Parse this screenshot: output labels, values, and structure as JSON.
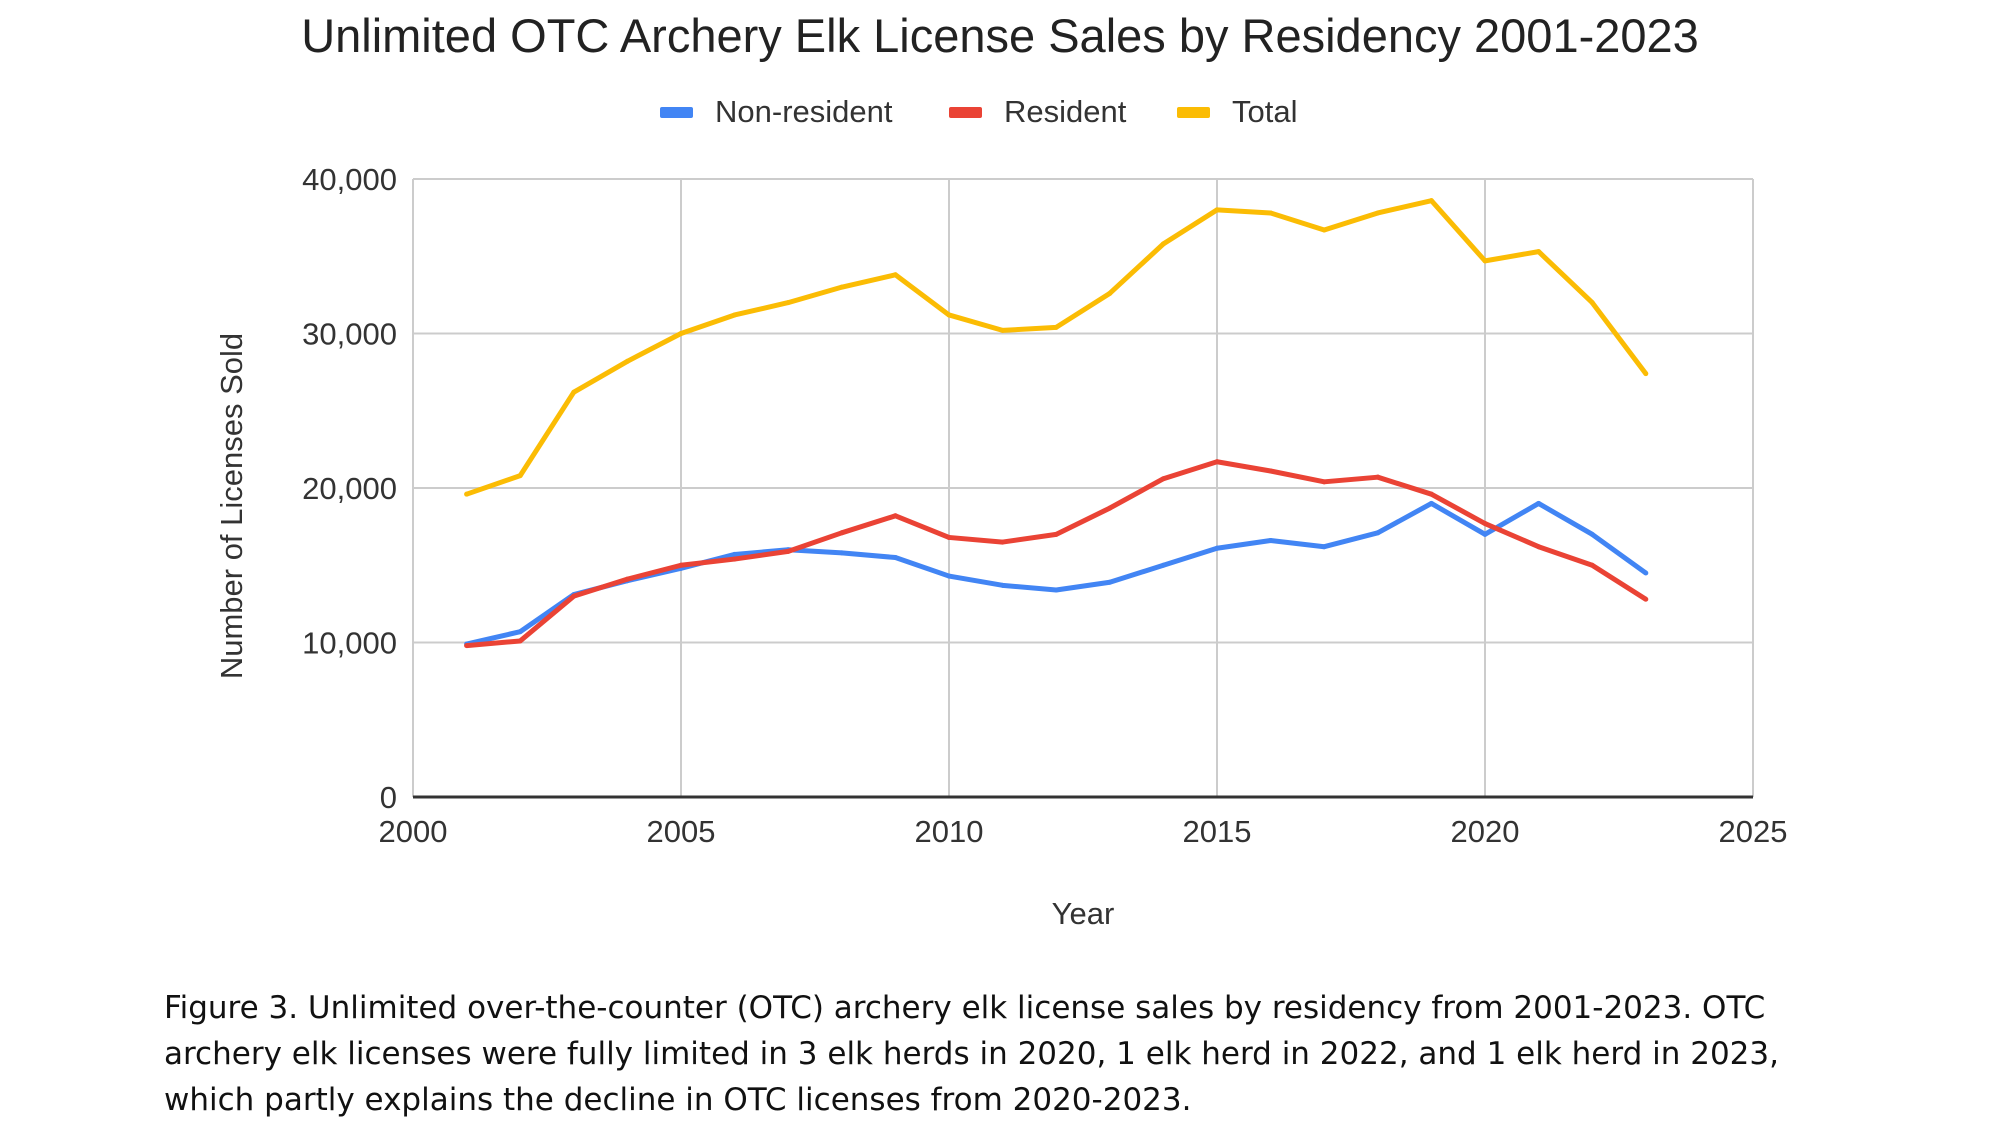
{
  "chart_data": {
    "type": "line",
    "title": "Unlimited OTC Archery Elk License Sales by Residency 2001-2023",
    "xlabel": "Year",
    "ylabel": "Number of Licenses Sold",
    "xlim": [
      2000,
      2025
    ],
    "ylim": [
      0,
      40000
    ],
    "xticks": [
      "2000",
      "2005",
      "2010",
      "2015",
      "2020",
      "2025"
    ],
    "yticks": [
      "0",
      "10,000",
      "20,000",
      "30,000",
      "40,000"
    ],
    "grid": true,
    "legend": "top",
    "x": [
      2001,
      2002,
      2003,
      2004,
      2005,
      2006,
      2007,
      2008,
      2009,
      2010,
      2011,
      2012,
      2013,
      2014,
      2015,
      2016,
      2017,
      2018,
      2019,
      2020,
      2021,
      2022,
      2023
    ],
    "series": [
      {
        "name": "Non-resident",
        "color": "#4285F4",
        "values": [
          9900,
          10700,
          13100,
          14000,
          14800,
          15700,
          16000,
          15800,
          15500,
          14300,
          13700,
          13400,
          13900,
          15000,
          16100,
          16600,
          16200,
          17100,
          19000,
          17000,
          19000,
          17000,
          14500
        ]
      },
      {
        "name": "Resident",
        "color": "#EA4335",
        "values": [
          9800,
          10100,
          13000,
          14100,
          15000,
          15400,
          15900,
          17100,
          18200,
          16800,
          16500,
          17000,
          18700,
          20600,
          21700,
          21100,
          20400,
          20700,
          19600,
          17700,
          16200,
          15000,
          12800
        ]
      },
      {
        "name": "Total",
        "color": "#FBBC04",
        "values": [
          19600,
          20800,
          26200,
          28200,
          30000,
          31200,
          32000,
          33000,
          33800,
          31200,
          30200,
          30400,
          32600,
          35800,
          38000,
          37800,
          36700,
          37800,
          38600,
          34700,
          35300,
          32000,
          27400
        ]
      }
    ]
  },
  "caption": "Figure 3. Unlimited over-the-counter (OTC) archery elk license sales by residency from 2001-2023. OTC archery elk licenses were fully limited in 3 elk herds in 2020, 1 elk herd in 2022, and 1 elk herd in 2023, which partly explains the decline in OTC licenses from 2020-2023."
}
